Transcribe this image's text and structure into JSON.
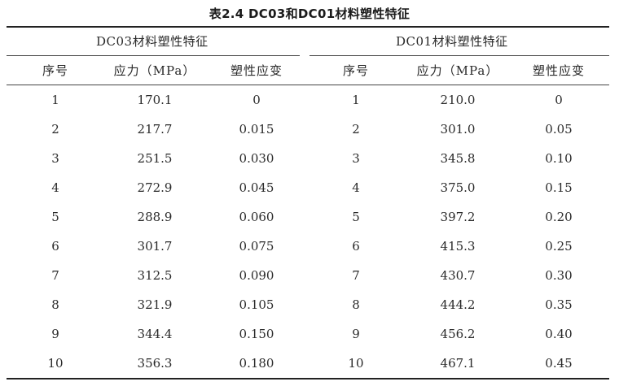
{
  "caption": "表2.4 DC03和DC01材料塑性特征",
  "groups": {
    "left_title": "DC03材料塑性特征",
    "right_title": "DC01材料塑性特征"
  },
  "headers": {
    "index": "序号",
    "stress": "应力（MPa）",
    "strain": "塑性应变"
  },
  "dc03": [
    {
      "n": "1",
      "stress": "170.1",
      "strain": "0"
    },
    {
      "n": "2",
      "stress": "217.7",
      "strain": "0.015"
    },
    {
      "n": "3",
      "stress": "251.5",
      "strain": "0.030"
    },
    {
      "n": "4",
      "stress": "272.9",
      "strain": "0.045"
    },
    {
      "n": "5",
      "stress": "288.9",
      "strain": "0.060"
    },
    {
      "n": "6",
      "stress": "301.7",
      "strain": "0.075"
    },
    {
      "n": "7",
      "stress": "312.5",
      "strain": "0.090"
    },
    {
      "n": "8",
      "stress": "321.9",
      "strain": "0.105"
    },
    {
      "n": "9",
      "stress": "344.4",
      "strain": "0.150"
    },
    {
      "n": "10",
      "stress": "356.3",
      "strain": "0.180"
    }
  ],
  "dc01": [
    {
      "n": "1",
      "stress": "210.0",
      "strain": "0"
    },
    {
      "n": "2",
      "stress": "301.0",
      "strain": "0.05"
    },
    {
      "n": "3",
      "stress": "345.8",
      "strain": "0.10"
    },
    {
      "n": "4",
      "stress": "375.0",
      "strain": "0.15"
    },
    {
      "n": "5",
      "stress": "397.2",
      "strain": "0.20"
    },
    {
      "n": "6",
      "stress": "415.3",
      "strain": "0.25"
    },
    {
      "n": "7",
      "stress": "430.7",
      "strain": "0.30"
    },
    {
      "n": "8",
      "stress": "444.2",
      "strain": "0.35"
    },
    {
      "n": "9",
      "stress": "456.2",
      "strain": "0.40"
    },
    {
      "n": "10",
      "stress": "467.1",
      "strain": "0.45"
    }
  ]
}
